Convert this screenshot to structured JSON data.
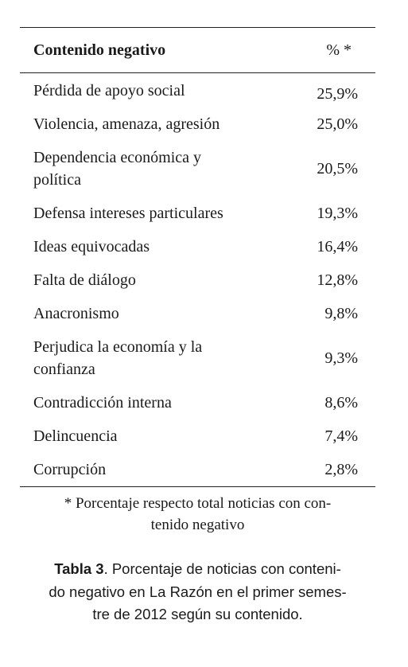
{
  "table": {
    "header": [
      "Contenido negativo",
      "% *"
    ],
    "rows": [
      {
        "content": [
          "Pérdida de apoyo social"
        ],
        "pct": "25,9%"
      },
      {
        "content": [
          "Violencia, amenaza, agresión"
        ],
        "pct": "25,0%"
      },
      {
        "content": [
          "Dependencia económica y",
          "política"
        ],
        "pct": "20,5%"
      },
      {
        "content": [
          "Defensa intereses particulares"
        ],
        "pct": "19,3%"
      },
      {
        "content": [
          "Ideas equivocadas"
        ],
        "pct": "16,4%"
      },
      {
        "content": [
          "Falta de diálogo"
        ],
        "pct": "12,8%"
      },
      {
        "content": [
          "Anacronismo"
        ],
        "pct": "9,8%"
      },
      {
        "content": [
          "Perjudica la economía y la",
          "confianza"
        ],
        "pct": "9,3%"
      },
      {
        "content": [
          "Contradicción interna"
        ],
        "pct": "8,6%"
      },
      {
        "content": [
          "Delincuencia"
        ],
        "pct": "7,4%"
      },
      {
        "content": [
          "Corrupción"
        ],
        "pct": "2,8%"
      }
    ]
  },
  "footnote": [
    "* Porcentaje respecto total noticias con con-",
    "tenido negativo"
  ],
  "caption": {
    "label": "Tabla 3",
    "lines": [
      ". Porcentaje de noticias con conteni-",
      "do negativo en La Razón en el primer semes-",
      "tre de 2012 según su contenido."
    ]
  }
}
